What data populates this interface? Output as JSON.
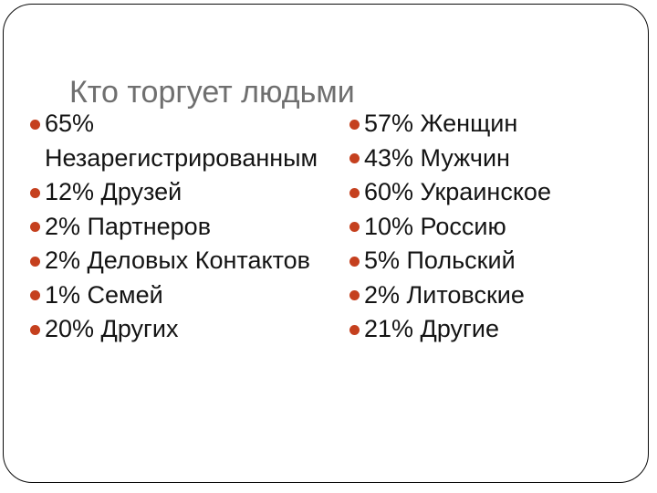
{
  "slide": {
    "title": "Кто торгует людьми",
    "columns": {
      "left": {
        "items": [
          "65% Незарегистрированным",
          "12% Друзей",
          "2% Партнеров",
          "2% Деловых Контактов",
          "1% Семей",
          "20% Других"
        ]
      },
      "right": {
        "items": [
          "57% Женщин",
          "43% Мужчин",
          "60% Украинское",
          "10% Россию",
          "5% Польский",
          "2% Литовские",
          "21% Другие"
        ]
      }
    },
    "colors": {
      "background": "#FFFFFF",
      "frame_border": "#0B0B0B",
      "title_text": "#6F6F6F",
      "body_text": "#141414",
      "bullet": "#C5401E"
    }
  }
}
